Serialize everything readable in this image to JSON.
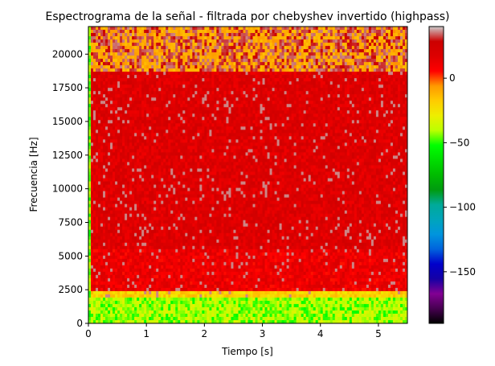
{
  "chart_data": {
    "type": "heatmap",
    "title": "Espectrograma de la señal - filtrada por chebyshev invertido (highpass)",
    "xlabel": "Tiempo [s]",
    "ylabel": "Frecuencia [Hz]",
    "xlim": [
      0,
      5.5
    ],
    "ylim": [
      0,
      22050
    ],
    "x_ticks": [
      0,
      1,
      2,
      3,
      4,
      5
    ],
    "x_tick_labels": [
      "0",
      "1",
      "2",
      "3",
      "4",
      "5"
    ],
    "y_ticks": [
      0,
      2500,
      5000,
      7500,
      10000,
      12500,
      15000,
      17500,
      20000
    ],
    "y_tick_labels": [
      "0",
      "2500",
      "5000",
      "7500",
      "10000",
      "12500",
      "15000",
      "17500",
      "20000"
    ],
    "colormap": "nipy_spectral",
    "colorbar": {
      "vmin": -190,
      "vmax": 40,
      "ticks": [
        0,
        -50,
        -100,
        -150
      ],
      "tick_labels": [
        "0",
        "−50",
        "−100",
        "−150"
      ]
    },
    "frequency_bands": [
      {
        "from_hz": 0,
        "to_hz": 1900,
        "level_db": -42
      },
      {
        "from_hz": 1900,
        "to_hz": 2500,
        "level_db": -20
      },
      {
        "from_hz": 2500,
        "to_hz": 5500,
        "level_db": 12
      },
      {
        "from_hz": 5500,
        "to_hz": 18700,
        "level_db": 18
      },
      {
        "from_hz": 18700,
        "to_hz": 22050,
        "level_db": -12
      }
    ],
    "grid": false
  }
}
